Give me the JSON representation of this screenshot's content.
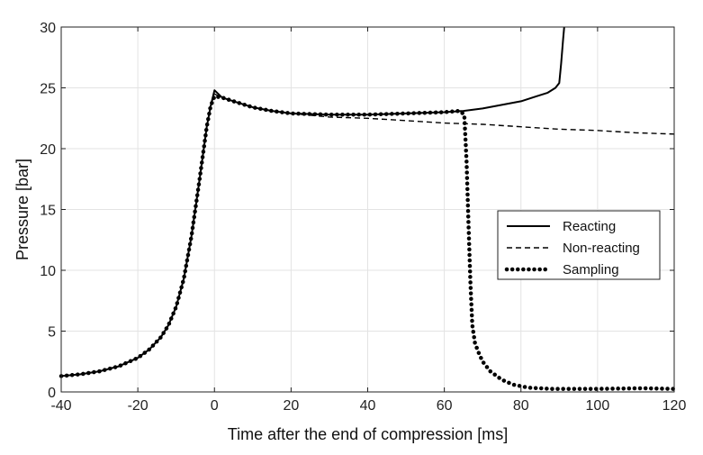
{
  "chart_data": {
    "type": "line",
    "xlabel": "Time after the end of compression [ms]",
    "ylabel": "Pressure [bar]",
    "xlim": [
      -40,
      120
    ],
    "ylim": [
      0,
      30
    ],
    "xticks": [
      -40,
      -20,
      0,
      20,
      40,
      60,
      80,
      100,
      120
    ],
    "yticks": [
      0,
      5,
      10,
      15,
      20,
      25,
      30
    ],
    "xtick_labels": [
      "-40",
      "-20",
      "0",
      "20",
      "40",
      "60",
      "80",
      "100",
      "120"
    ],
    "ytick_labels": [
      "0",
      "5",
      "10",
      "15",
      "20",
      "25",
      "30"
    ],
    "grid": true,
    "legend_position": "right",
    "series": [
      {
        "name": "Reacting",
        "style": "solid",
        "color": "#000000",
        "x": [
          -40,
          -35,
          -30,
          -25,
          -20,
          -17,
          -14,
          -12,
          -10,
          -8,
          -6,
          -4,
          -2,
          -1,
          0,
          2,
          5,
          10,
          15,
          20,
          30,
          40,
          50,
          60,
          65,
          70,
          75,
          80,
          84,
          87,
          89,
          90,
          90.5,
          91,
          91.3
        ],
        "y": [
          1.3,
          1.45,
          1.7,
          2.1,
          2.8,
          3.5,
          4.5,
          5.5,
          7.0,
          9.3,
          12.8,
          17.2,
          21.8,
          23.5,
          24.8,
          24.2,
          23.9,
          23.4,
          23.1,
          22.9,
          22.8,
          22.8,
          22.9,
          23.0,
          23.1,
          23.3,
          23.6,
          23.9,
          24.3,
          24.6,
          25.0,
          25.4,
          27,
          29,
          30
        ]
      },
      {
        "name": "Non-reacting",
        "style": "dashed",
        "color": "#000000",
        "x": [
          -40,
          -35,
          -30,
          -25,
          -20,
          -17,
          -14,
          -12,
          -10,
          -8,
          -6,
          -4,
          -2,
          -1,
          0,
          2,
          5,
          10,
          15,
          20,
          30,
          40,
          50,
          60,
          70,
          80,
          90,
          100,
          110,
          120
        ],
        "y": [
          1.3,
          1.45,
          1.7,
          2.1,
          2.8,
          3.5,
          4.5,
          5.5,
          7.0,
          9.3,
          12.8,
          17.2,
          21.8,
          23.5,
          24.5,
          24.2,
          23.9,
          23.4,
          23.1,
          22.9,
          22.6,
          22.5,
          22.3,
          22.1,
          22.0,
          21.8,
          21.6,
          21.5,
          21.3,
          21.2
        ]
      },
      {
        "name": "Sampling",
        "style": "dotted",
        "color": "#000000",
        "x": [
          -40,
          -35,
          -30,
          -25,
          -20,
          -17,
          -14,
          -12,
          -10,
          -8,
          -6,
          -4,
          -2,
          -1,
          0,
          2,
          5,
          10,
          15,
          20,
          30,
          40,
          50,
          60,
          64,
          65.2,
          65.8,
          66.3,
          66.8,
          67.3,
          68,
          69,
          70,
          72,
          75,
          78,
          82,
          88,
          100,
          112,
          120
        ],
        "y": [
          1.3,
          1.45,
          1.7,
          2.1,
          2.8,
          3.5,
          4.5,
          5.5,
          7.0,
          9.3,
          12.8,
          17.2,
          21.8,
          23.5,
          24.3,
          24.2,
          23.9,
          23.4,
          23.1,
          22.9,
          22.8,
          22.8,
          22.9,
          23.0,
          23.1,
          22.8,
          19.0,
          14.0,
          9.0,
          5.5,
          4.0,
          3.2,
          2.5,
          1.7,
          1.0,
          0.6,
          0.35,
          0.25,
          0.25,
          0.3,
          0.25
        ]
      }
    ]
  }
}
